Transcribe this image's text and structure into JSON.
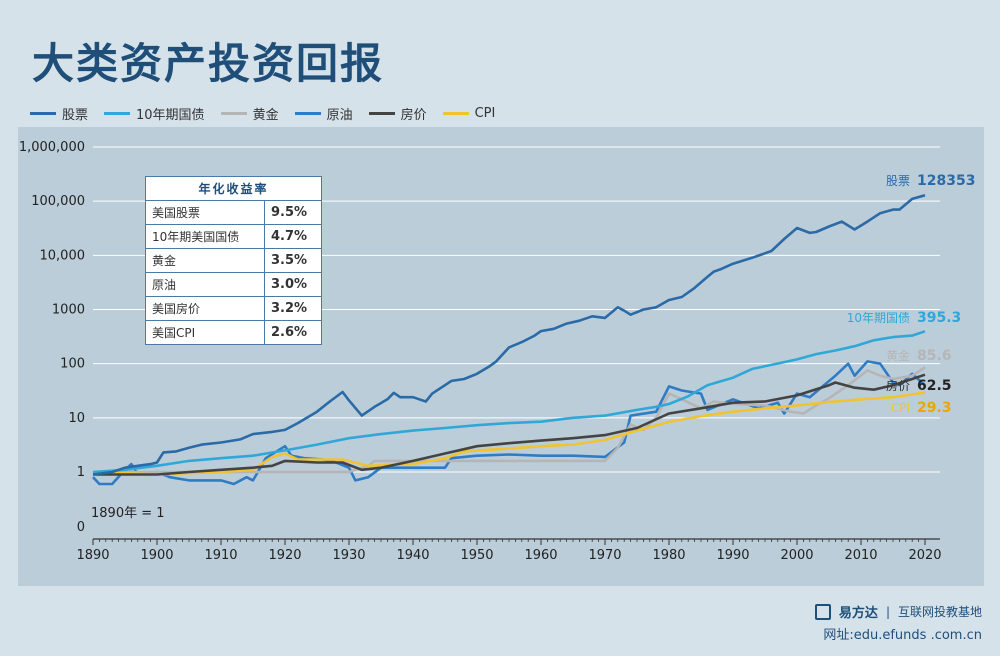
{
  "title": "大类资产投资回报",
  "legend": [
    {
      "name": "股票",
      "color": "#2a6aa6"
    },
    {
      "name": "10年期国债",
      "color": "#2fa8d8"
    },
    {
      "name": "黄金",
      "color": "#b5b5b5"
    },
    {
      "name": "原油",
      "color": "#2f7bc4"
    },
    {
      "name": "房价",
      "color": "#444444"
    },
    {
      "name": "CPI",
      "color": "#f0c430"
    }
  ],
  "table": {
    "header": "年化收益率",
    "rows": [
      {
        "name": "美国股票",
        "value": "9.5%"
      },
      {
        "name": "10年期美国国债",
        "value": "4.7%"
      },
      {
        "name": "黄金",
        "value": "3.5%"
      },
      {
        "name": "原油",
        "value": "3.0%"
      },
      {
        "name": "美国房价",
        "value": "3.2%"
      },
      {
        "name": "美国CPI",
        "value": "2.6%"
      }
    ]
  },
  "base_note": "1890年 = 1",
  "footer": {
    "brand": "易方达",
    "tagline": "互联网投教基地",
    "url": "网址:edu.efunds .com.cn"
  },
  "chart_data": {
    "type": "line",
    "scale": "log",
    "xlim": [
      1890,
      2020
    ],
    "ylim": [
      1,
      1000000
    ],
    "x_ticks": [
      "1890",
      "1900",
      "1910",
      "1920",
      "1930",
      "1940",
      "1950",
      "1960",
      "1970",
      "1980",
      "1990",
      "2000",
      "2010",
      "2020"
    ],
    "y_ticks": [
      {
        "v": 1000000,
        "label": "1,000,000"
      },
      {
        "v": 100000,
        "label": "100,000"
      },
      {
        "v": 10000,
        "label": "10,000"
      },
      {
        "v": 1000,
        "label": "1000"
      },
      {
        "v": 100,
        "label": "100"
      },
      {
        "v": 10,
        "label": "10"
      },
      {
        "v": 1,
        "label": "1"
      }
    ],
    "y_zero_label": "0",
    "grid": true,
    "series": [
      {
        "name": "股票",
        "color": "#2a6aa6",
        "end_label": "股票",
        "end_value": "128353",
        "points": [
          [
            1890,
            0.9
          ],
          [
            1893,
            1.0
          ],
          [
            1895,
            1.2
          ],
          [
            1897,
            1.3
          ],
          [
            1899,
            1.4
          ],
          [
            1900,
            1.5
          ],
          [
            1901,
            2.3
          ],
          [
            1903,
            2.4
          ],
          [
            1905,
            2.8
          ],
          [
            1907,
            3.2
          ],
          [
            1910,
            3.5
          ],
          [
            1913,
            4.0
          ],
          [
            1915,
            5.0
          ],
          [
            1918,
            5.5
          ],
          [
            1920,
            6.0
          ],
          [
            1922,
            8
          ],
          [
            1925,
            13
          ],
          [
            1927,
            20
          ],
          [
            1929,
            30
          ],
          [
            1930,
            21
          ],
          [
            1932,
            11
          ],
          [
            1934,
            16
          ],
          [
            1936,
            22
          ],
          [
            1937,
            29
          ],
          [
            1938,
            24
          ],
          [
            1940,
            24
          ],
          [
            1942,
            20
          ],
          [
            1943,
            28
          ],
          [
            1945,
            40
          ],
          [
            1946,
            48
          ],
          [
            1948,
            52
          ],
          [
            1950,
            65
          ],
          [
            1952,
            90
          ],
          [
            1953,
            110
          ],
          [
            1955,
            200
          ],
          [
            1957,
            250
          ],
          [
            1959,
            330
          ],
          [
            1960,
            400
          ],
          [
            1962,
            440
          ],
          [
            1964,
            550
          ],
          [
            1966,
            620
          ],
          [
            1968,
            750
          ],
          [
            1970,
            700
          ],
          [
            1972,
            1100
          ],
          [
            1973,
            950
          ],
          [
            1974,
            800
          ],
          [
            1976,
            1000
          ],
          [
            1978,
            1100
          ],
          [
            1980,
            1500
          ],
          [
            1982,
            1700
          ],
          [
            1984,
            2500
          ],
          [
            1986,
            4000
          ],
          [
            1987,
            5000
          ],
          [
            1988,
            5500
          ],
          [
            1990,
            7000
          ],
          [
            1993,
            9000
          ],
          [
            1996,
            12000
          ],
          [
            1998,
            20000
          ],
          [
            2000,
            32000
          ],
          [
            2002,
            26000
          ],
          [
            2003,
            27000
          ],
          [
            2005,
            34000
          ],
          [
            2007,
            42000
          ],
          [
            2009,
            30000
          ],
          [
            2011,
            42000
          ],
          [
            2013,
            60000
          ],
          [
            2015,
            70000
          ],
          [
            2016,
            70000
          ],
          [
            2018,
            110000
          ],
          [
            2020,
            128353
          ]
        ]
      },
      {
        "name": "10年期国债",
        "color": "#2fa8d8",
        "end_label": "10年期国债",
        "end_value": "395.3",
        "points": [
          [
            1890,
            1.0
          ],
          [
            1895,
            1.1
          ],
          [
            1900,
            1.3
          ],
          [
            1905,
            1.6
          ],
          [
            1910,
            1.8
          ],
          [
            1915,
            2.0
          ],
          [
            1920,
            2.5
          ],
          [
            1925,
            3.2
          ],
          [
            1930,
            4.2
          ],
          [
            1935,
            5.0
          ],
          [
            1940,
            5.8
          ],
          [
            1945,
            6.5
          ],
          [
            1950,
            7.3
          ],
          [
            1955,
            8
          ],
          [
            1960,
            8.5
          ],
          [
            1965,
            10
          ],
          [
            1970,
            11
          ],
          [
            1975,
            14
          ],
          [
            1978,
            16
          ],
          [
            1980,
            18
          ],
          [
            1983,
            25
          ],
          [
            1986,
            40
          ],
          [
            1990,
            55
          ],
          [
            1993,
            80
          ],
          [
            1996,
            95
          ],
          [
            2000,
            120
          ],
          [
            2003,
            150
          ],
          [
            2006,
            175
          ],
          [
            2009,
            210
          ],
          [
            2012,
            270
          ],
          [
            2015,
            310
          ],
          [
            2018,
            330
          ],
          [
            2020,
            395.3
          ]
        ]
      },
      {
        "name": "黄金",
        "color": "#b5b5b5",
        "end_label": "黄金",
        "end_value": "85.6",
        "points": [
          [
            1890,
            1.0
          ],
          [
            1900,
            1.0
          ],
          [
            1910,
            1.0
          ],
          [
            1920,
            1.0
          ],
          [
            1930,
            1.0
          ],
          [
            1933,
            1.3
          ],
          [
            1934,
            1.6
          ],
          [
            1940,
            1.6
          ],
          [
            1950,
            1.6
          ],
          [
            1960,
            1.6
          ],
          [
            1968,
            1.6
          ],
          [
            1970,
            1.6
          ],
          [
            1972,
            2.8
          ],
          [
            1974,
            7.5
          ],
          [
            1976,
            6
          ],
          [
            1978,
            10
          ],
          [
            1980,
            28
          ],
          [
            1982,
            22
          ],
          [
            1985,
            15
          ],
          [
            1987,
            20
          ],
          [
            1990,
            18
          ],
          [
            1995,
            17
          ],
          [
            1999,
            13
          ],
          [
            2001,
            12
          ],
          [
            2003,
            17
          ],
          [
            2005,
            23
          ],
          [
            2008,
            40
          ],
          [
            2011,
            75
          ],
          [
            2013,
            60
          ],
          [
            2015,
            52
          ],
          [
            2018,
            60
          ],
          [
            2020,
            85.6
          ]
        ]
      },
      {
        "name": "原油",
        "color": "#2f7bc4",
        "end_label": "",
        "end_value": "",
        "points": [
          [
            1890,
            0.8
          ],
          [
            1891,
            0.6
          ],
          [
            1893,
            0.6
          ],
          [
            1895,
            1.1
          ],
          [
            1896,
            1.4
          ],
          [
            1897,
            0.9
          ],
          [
            1900,
            1.0
          ],
          [
            1902,
            0.8
          ],
          [
            1905,
            0.7
          ],
          [
            1910,
            0.7
          ],
          [
            1912,
            0.6
          ],
          [
            1914,
            0.8
          ],
          [
            1915,
            0.7
          ],
          [
            1917,
            1.8
          ],
          [
            1920,
            3.0
          ],
          [
            1921,
            2.0
          ],
          [
            1923,
            1.8
          ],
          [
            1926,
            1.7
          ],
          [
            1928,
            1.5
          ],
          [
            1930,
            1.2
          ],
          [
            1931,
            0.7
          ],
          [
            1933,
            0.8
          ],
          [
            1935,
            1.2
          ],
          [
            1940,
            1.2
          ],
          [
            1945,
            1.2
          ],
          [
            1946,
            1.8
          ],
          [
            1950,
            2.0
          ],
          [
            1955,
            2.1
          ],
          [
            1960,
            2.0
          ],
          [
            1965,
            2.0
          ],
          [
            1970,
            1.9
          ],
          [
            1973,
            3.5
          ],
          [
            1974,
            11
          ],
          [
            1978,
            13
          ],
          [
            1980,
            38
          ],
          [
            1982,
            32
          ],
          [
            1985,
            28
          ],
          [
            1986,
            14
          ],
          [
            1990,
            22
          ],
          [
            1994,
            15
          ],
          [
            1997,
            19
          ],
          [
            1998,
            12
          ],
          [
            2000,
            28
          ],
          [
            2002,
            24
          ],
          [
            2004,
            38
          ],
          [
            2006,
            60
          ],
          [
            2008,
            100
          ],
          [
            2009,
            60
          ],
          [
            2011,
            110
          ],
          [
            2013,
            100
          ],
          [
            2015,
            45
          ],
          [
            2016,
            40
          ],
          [
            2018,
            65
          ],
          [
            2020,
            40
          ]
        ]
      },
      {
        "name": "房价",
        "color": "#444444",
        "end_label": "房价",
        "end_value": "62.5",
        "points": [
          [
            1890,
            0.9
          ],
          [
            1900,
            0.9
          ],
          [
            1905,
            1.0
          ],
          [
            1910,
            1.1
          ],
          [
            1915,
            1.2
          ],
          [
            1918,
            1.3
          ],
          [
            1920,
            1.6
          ],
          [
            1925,
            1.5
          ],
          [
            1929,
            1.5
          ],
          [
            1932,
            1.1
          ],
          [
            1935,
            1.2
          ],
          [
            1940,
            1.6
          ],
          [
            1945,
            2.2
          ],
          [
            1950,
            3.0
          ],
          [
            1955,
            3.4
          ],
          [
            1960,
            3.8
          ],
          [
            1965,
            4.2
          ],
          [
            1970,
            4.8
          ],
          [
            1975,
            6.5
          ],
          [
            1980,
            12
          ],
          [
            1985,
            15
          ],
          [
            1990,
            19
          ],
          [
            1995,
            20
          ],
          [
            2000,
            26
          ],
          [
            2005,
            40
          ],
          [
            2006,
            45
          ],
          [
            2009,
            36
          ],
          [
            2012,
            33
          ],
          [
            2015,
            40
          ],
          [
            2018,
            52
          ],
          [
            2020,
            62.5
          ]
        ]
      },
      {
        "name": "CPI",
        "color": "#f0c430",
        "end_label": "CPI",
        "end_value": "29.3",
        "points": [
          [
            1890,
            1.0
          ],
          [
            1900,
            0.9
          ],
          [
            1910,
            1.0
          ],
          [
            1915,
            1.1
          ],
          [
            1918,
            1.9
          ],
          [
            1920,
            2.2
          ],
          [
            1922,
            1.7
          ],
          [
            1929,
            1.7
          ],
          [
            1933,
            1.3
          ],
          [
            1940,
            1.4
          ],
          [
            1945,
            1.8
          ],
          [
            1948,
            2.4
          ],
          [
            1950,
            2.5
          ],
          [
            1955,
            2.7
          ],
          [
            1960,
            3.0
          ],
          [
            1965,
            3.2
          ],
          [
            1970,
            3.9
          ],
          [
            1975,
            5.8
          ],
          [
            1980,
            8.4
          ],
          [
            1985,
            10.7
          ],
          [
            1990,
            13
          ],
          [
            1995,
            15
          ],
          [
            2000,
            17
          ],
          [
            2005,
            19.5
          ],
          [
            2010,
            22
          ],
          [
            2015,
            24
          ],
          [
            2020,
            29.3
          ]
        ]
      }
    ]
  }
}
